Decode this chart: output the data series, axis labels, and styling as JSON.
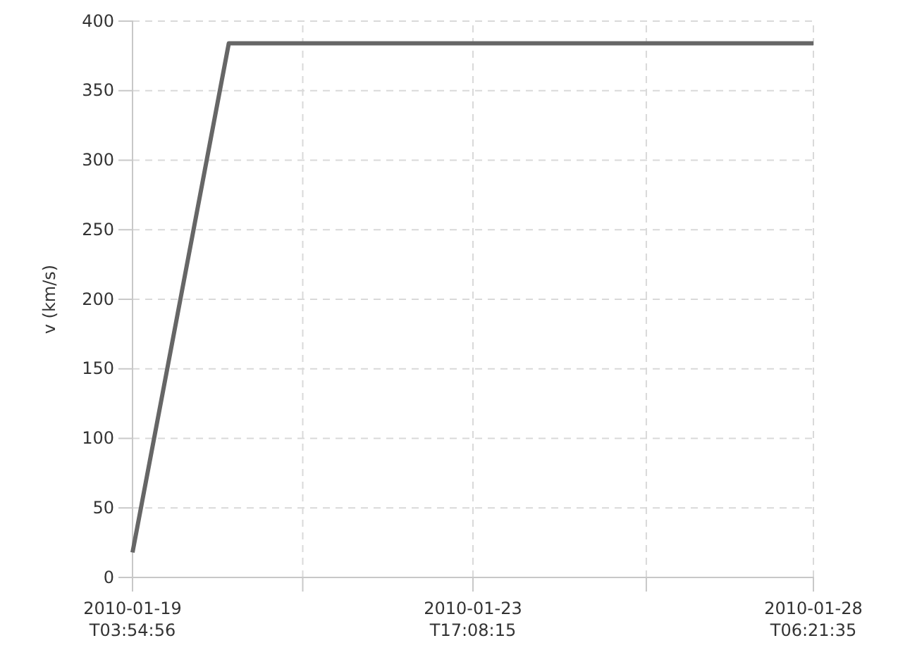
{
  "chart_data": {
    "type": "line",
    "ylabel": "v (km/s)",
    "x": [
      "2010-01-19T03:54:56",
      "2010-01-20T10:48:00",
      "2010-01-28T06:21:35"
    ],
    "series": [
      {
        "color": "#666666",
        "values": [
          18,
          384,
          384
        ]
      }
    ],
    "xlim": [
      "2010-01-19T03:54:56",
      "2010-01-28T06:21:35"
    ],
    "xticks": [
      {
        "value": "2010-01-19T03:54:56",
        "label": "2010-01-19\nT03:54:56"
      },
      {
        "value": "2010-01-21T10:31:36",
        "label": null
      },
      {
        "value": "2010-01-23T17:08:15",
        "label": "2010-01-23\nT17:08:15"
      },
      {
        "value": "2010-01-26T00:44:55",
        "label": null
      },
      {
        "value": "2010-01-28T06:21:35",
        "label": "2010-01-28\nT06:21:35"
      }
    ],
    "ylim": [
      0,
      400
    ],
    "yticks": [
      0,
      50,
      100,
      150,
      200,
      250,
      300,
      350,
      400
    ],
    "grid": true,
    "marker": "none",
    "line_style": "solid"
  }
}
